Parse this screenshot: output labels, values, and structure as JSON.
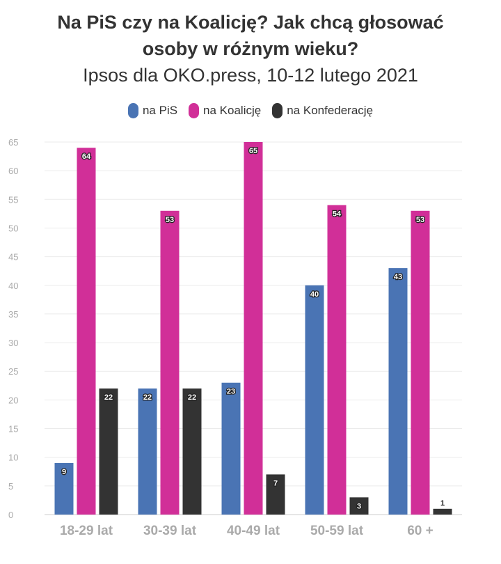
{
  "header": {
    "title_line1": "Na PiS czy na Koalicję? Jak chcą głosować",
    "title_line2": "osoby w różnym wieku?",
    "subtitle": "Ipsos dla OKO.press, 10-12 lutego 2021"
  },
  "chart_data": {
    "type": "bar",
    "title": "Na PiS czy na Koalicję? Jak chcą głosować osoby w różnym wieku?",
    "subtitle": "Ipsos dla OKO.press, 10-12 lutego 2021",
    "categories": [
      "18-29 lat",
      "30-39 lat",
      "40-49 lat",
      "50-59 lat",
      "60 +"
    ],
    "series": [
      {
        "name": "na PiS",
        "color": "#4a74b4",
        "values": [
          9,
          22,
          23,
          40,
          43
        ]
      },
      {
        "name": "na Koalicję",
        "color": "#d12f98",
        "values": [
          64,
          53,
          65,
          54,
          53
        ]
      },
      {
        "name": "na Konfederację",
        "color": "#333333",
        "values": [
          22,
          22,
          7,
          3,
          1
        ]
      }
    ],
    "yticks": [
      0,
      5,
      10,
      15,
      20,
      25,
      30,
      35,
      40,
      45,
      50,
      55,
      60,
      65
    ],
    "ylim": [
      0,
      65
    ],
    "xlabel": "",
    "ylabel": "",
    "grid": true,
    "legend_position": "top-center"
  }
}
